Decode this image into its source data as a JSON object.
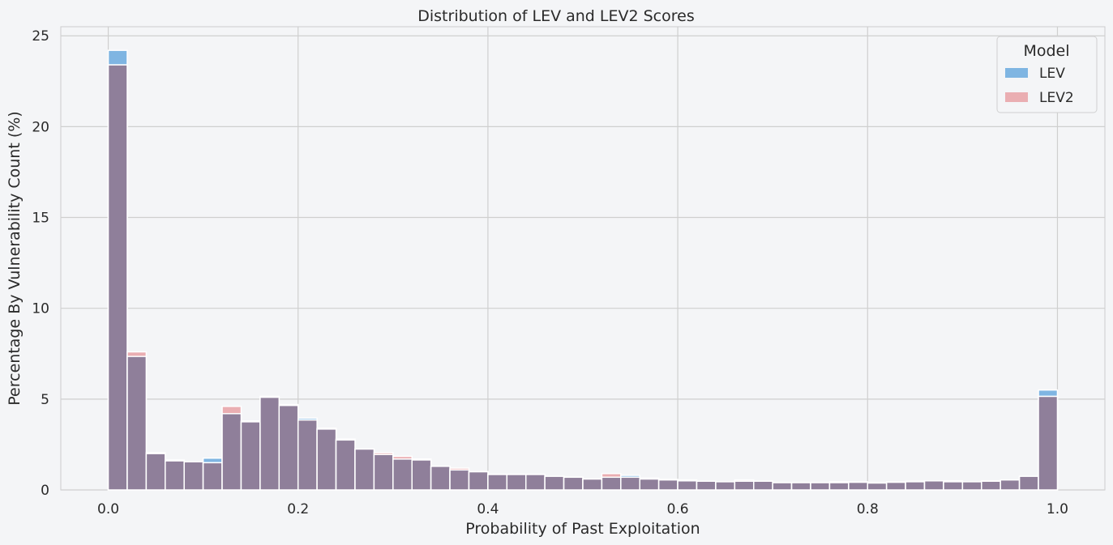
{
  "chart_data": {
    "type": "bar",
    "subtype": "overlaid-histogram",
    "title": "Distribution of LEV and LEV2 Scores",
    "xlabel": "Probability of Past Exploitation",
    "ylabel": "Percentage By Vulnerability Count (%)",
    "xlim": [
      -0.05,
      1.05
    ],
    "ylim": [
      0,
      25.5
    ],
    "xticks": [
      "0.0",
      "0.2",
      "0.4",
      "0.6",
      "0.8",
      "1.0"
    ],
    "xtick_values": [
      0,
      0.2,
      0.4,
      0.6,
      0.8,
      1.0
    ],
    "yticks": [
      "0",
      "5",
      "10",
      "15",
      "20",
      "25"
    ],
    "ytick_values": [
      0,
      5,
      10,
      15,
      20,
      25
    ],
    "grid": true,
    "bin_width": 0.02,
    "bin_start": 0.0,
    "legend": {
      "title": "Model",
      "placement": "top-right"
    },
    "colors": {
      "LEV": "#7fb5e2",
      "LEV2": "#eaaeb2",
      "overlap": "#8f7f9a"
    },
    "series": [
      {
        "name": "LEV",
        "values": [
          24.2,
          7.35,
          2.0,
          1.6,
          1.55,
          1.75,
          4.2,
          3.8,
          5.15,
          4.65,
          3.95,
          3.35,
          2.8,
          2.25,
          1.95,
          1.7,
          1.7,
          1.3,
          1.1,
          1.0,
          0.85,
          0.85,
          0.85,
          0.75,
          0.7,
          0.6,
          0.7,
          0.8,
          0.65,
          0.55,
          0.5,
          0.48,
          0.45,
          0.48,
          0.48,
          0.4,
          0.4,
          0.4,
          0.4,
          0.42,
          0.38,
          0.42,
          0.45,
          0.5,
          0.45,
          0.45,
          0.48,
          0.55,
          0.75,
          5.5
        ]
      },
      {
        "name": "LEV2",
        "values": [
          23.4,
          7.6,
          2.05,
          1.65,
          1.55,
          1.5,
          4.6,
          3.75,
          5.1,
          4.7,
          3.85,
          3.4,
          2.75,
          2.25,
          2.05,
          1.85,
          1.65,
          1.3,
          1.2,
          1.0,
          0.85,
          0.85,
          0.85,
          0.75,
          0.7,
          0.6,
          0.9,
          0.7,
          0.6,
          0.58,
          0.55,
          0.48,
          0.45,
          0.55,
          0.48,
          0.4,
          0.4,
          0.4,
          0.45,
          0.45,
          0.42,
          0.45,
          0.48,
          0.5,
          0.5,
          0.45,
          0.5,
          0.55,
          0.75,
          5.15
        ]
      }
    ]
  }
}
